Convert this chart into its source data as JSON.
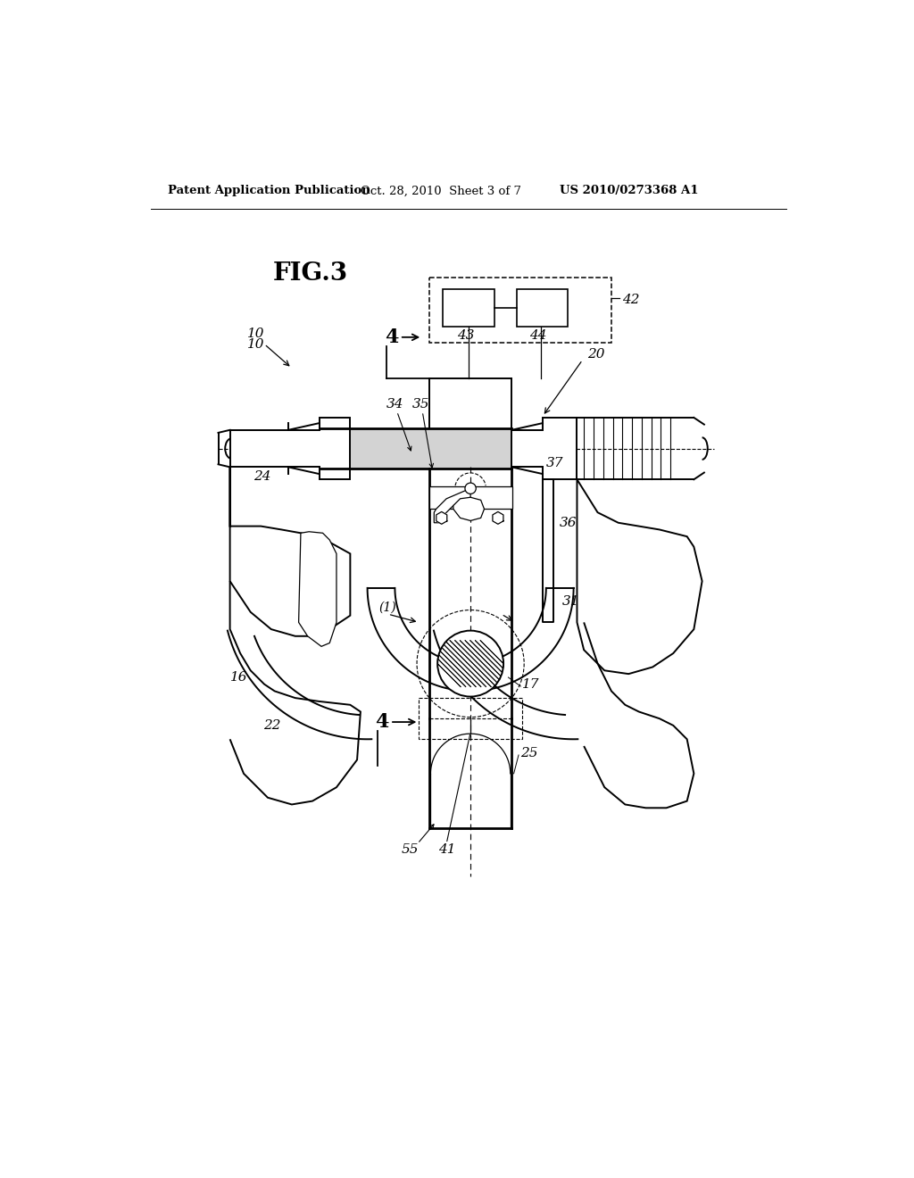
{
  "bg_color": "#ffffff",
  "title_header": "Patent Application Publication",
  "date_header": "Oct. 28, 2010  Sheet 3 of 7",
  "patent_header": "US 2010/0273368 A1",
  "fig_label": "FIG.3"
}
